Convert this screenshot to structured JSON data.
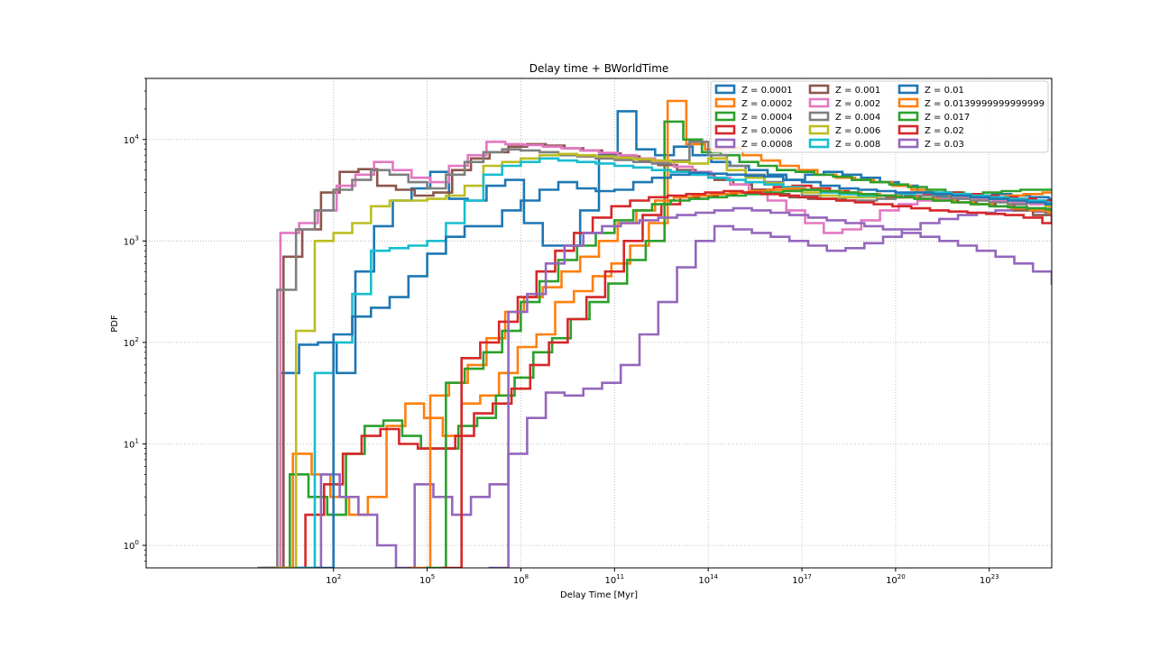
{
  "chart_data": {
    "type": "histogram-step",
    "title": "Delay time + BWorldTime",
    "xlabel": "Delay Time [Myr]",
    "ylabel": "PDF",
    "xscale": "log",
    "yscale": "log",
    "xlim": [
      0.0001,
      1e+25
    ],
    "ylim": [
      0.6,
      40000
    ],
    "grid": true,
    "legend_position": "top-right",
    "x_ticks": [
      {
        "value": 100.0,
        "base": "10",
        "exp": "2"
      },
      {
        "value": 100000.0,
        "base": "10",
        "exp": "5"
      },
      {
        "value": 100000000.0,
        "base": "10",
        "exp": "8"
      },
      {
        "value": 100000000000.0,
        "base": "10",
        "exp": "11"
      },
      {
        "value": 100000000000000.0,
        "base": "10",
        "exp": "14"
      },
      {
        "value": 1e+17,
        "base": "10",
        "exp": "17"
      },
      {
        "value": 1e+20,
        "base": "10",
        "exp": "20"
      },
      {
        "value": 1e+23,
        "base": "10",
        "exp": "23"
      }
    ],
    "y_ticks": [
      {
        "value": 1,
        "base": "10",
        "exp": "0"
      },
      {
        "value": 10,
        "base": "10",
        "exp": "1"
      },
      {
        "value": 100,
        "base": "10",
        "exp": "2"
      },
      {
        "value": 1000,
        "base": "10",
        "exp": "3"
      },
      {
        "value": 10000,
        "base": "10",
        "exp": "4"
      }
    ],
    "series": [
      {
        "name": "Z = 0.0001",
        "color": "#1f77b4",
        "start_exp": -0.3,
        "bin_width_exp": 0.6,
        "values": [
          0.6,
          50,
          95,
          100,
          50,
          500,
          1400,
          2500,
          3300,
          4800,
          2600,
          2500,
          3500,
          4000,
          1500,
          900,
          900,
          2000,
          7000,
          19000,
          8000,
          7000,
          8500,
          7000,
          6000,
          5500,
          5000,
          4500,
          4000,
          4500,
          4800,
          4500,
          4200,
          3800,
          3500,
          3000,
          2800,
          2700,
          2800,
          2900,
          2800,
          2700,
          2600,
          2500,
          2500,
          2400,
          2300,
          2200,
          2000,
          1800,
          1500,
          1000,
          600,
          300,
          150,
          60,
          25,
          8,
          1,
          0.6
        ]
      },
      {
        "name": "Z = 0.0002",
        "color": "#ff7f0e",
        "start_exp": 0.1,
        "bin_width_exp": 0.6,
        "values": [
          0.6,
          8,
          5,
          3,
          2,
          3,
          15,
          25,
          18,
          12,
          25,
          30,
          50,
          90,
          120,
          250,
          320,
          450,
          600,
          900,
          1500,
          24000,
          9000,
          8000,
          8200,
          7000,
          6200,
          5500,
          5000,
          4500,
          4200,
          4000,
          3800,
          3500,
          3200,
          2900,
          2800,
          2700,
          2700,
          2800,
          2900,
          3000,
          3000,
          2900,
          2800,
          2700,
          2500,
          2300,
          2100,
          1900,
          1600,
          1200,
          700,
          400,
          180,
          80,
          30,
          12,
          5,
          2,
          0.6
        ]
      },
      {
        "name": "Z = 0.0004",
        "color": "#2ca02c",
        "start_exp": 0.0,
        "bin_width_exp": 0.6,
        "values": [
          0.6,
          5,
          3,
          2,
          8,
          15,
          17,
          12,
          9,
          9,
          15,
          18,
          30,
          45,
          80,
          110,
          170,
          250,
          380,
          650,
          1000,
          15000,
          10000,
          7500,
          7000,
          6000,
          5500,
          5000,
          4800,
          4500,
          4300,
          4000,
          3800,
          3600,
          3400,
          3200,
          3000,
          2900,
          3000,
          3100,
          3200,
          3200,
          3200,
          3100,
          3000,
          2900,
          2800,
          2600,
          2400,
          2200,
          2000,
          1700,
          1300,
          850,
          500,
          250,
          100,
          40,
          12,
          4,
          0.6
        ]
      },
      {
        "name": "Z = 0.0006",
        "color": "#d62728",
        "start_exp": 0.5,
        "bin_width_exp": 0.6,
        "values": [
          0.6,
          2,
          4,
          8,
          12,
          14,
          10,
          9,
          9,
          12,
          20,
          25,
          35,
          60,
          100,
          170,
          280,
          500,
          1000,
          1800,
          2300,
          2700,
          2800,
          2900,
          3000,
          3200,
          3400,
          3500,
          3300,
          3100,
          2900,
          2800,
          2700,
          2800,
          2900,
          3000,
          2900,
          2800,
          2700,
          2600,
          2500,
          2400,
          2300,
          2200,
          2100,
          2000,
          1900,
          1800,
          1700,
          1600,
          1300,
          900,
          600,
          350,
          180,
          90,
          40,
          15,
          5,
          1,
          0.6
        ]
      },
      {
        "name": "Z = 0.0008",
        "color": "#9467bd",
        "start_exp": 1.0,
        "bin_width_exp": 0.6,
        "values": [
          0.6,
          5,
          3,
          2,
          1,
          0.6,
          4,
          3,
          2,
          3,
          4,
          8,
          18,
          32,
          30,
          35,
          40,
          60,
          120,
          250,
          550,
          1000,
          1400,
          1300,
          1200,
          1100,
          1000,
          900,
          800,
          850,
          950,
          1100,
          1300,
          1500,
          1650,
          1800,
          1900,
          2000,
          2100,
          1950,
          1850,
          1750,
          1650,
          1500,
          1300,
          1100,
          900,
          700,
          480,
          320,
          200,
          120,
          70,
          40,
          28,
          18,
          12,
          8,
          5,
          2,
          0.6
        ]
      },
      {
        "name": "Z = 0.001",
        "color": "#8c564b",
        "start_exp": -0.2,
        "bin_width_exp": 0.6,
        "values": [
          0.6,
          700,
          1300,
          3000,
          4800,
          5100,
          3500,
          3200,
          2800,
          3000,
          5000,
          6500,
          7500,
          8500,
          9000,
          8700,
          8200,
          7800,
          7300,
          6800,
          6200,
          5600,
          5000,
          4500,
          4000,
          3600,
          3200,
          2900,
          2700,
          2600,
          2600,
          2700,
          2800,
          2800,
          2700,
          2600,
          2500,
          2400,
          2300,
          2200,
          2000,
          1800,
          1500,
          1100,
          700,
          400,
          200,
          100,
          50,
          25,
          12,
          6,
          3,
          1,
          0.6
        ]
      },
      {
        "name": "Z = 0.002",
        "color": "#e377c2",
        "start_exp": -0.3,
        "bin_width_exp": 0.6,
        "values": [
          0.6,
          1200,
          1500,
          2000,
          3500,
          4500,
          6000,
          5000,
          4200,
          3800,
          5500,
          7000,
          9500,
          9000,
          8800,
          8500,
          8200,
          7800,
          7400,
          7000,
          6500,
          6000,
          5400,
          4800,
          4200,
          3600,
          3000,
          2500,
          2000,
          1500,
          1200,
          1300,
          1600,
          2000,
          2300,
          2500,
          2600,
          2700,
          2600,
          2500,
          2400,
          2300,
          2100,
          1900,
          1700,
          1400,
          1000,
          600,
          300,
          150,
          60,
          20,
          8,
          3,
          1,
          0.6
        ]
      },
      {
        "name": "Z = 0.004",
        "color": "#7f7f7f",
        "start_exp": -0.4,
        "bin_width_exp": 0.6,
        "values": [
          0.6,
          330,
          1300,
          2000,
          3200,
          4000,
          5000,
          4500,
          3800,
          3300,
          4500,
          6000,
          7500,
          8000,
          7800,
          7500,
          7000,
          6800,
          6500,
          6300,
          6000,
          5800,
          6200,
          9500,
          7000,
          5500,
          4500,
          3800,
          3200,
          2800,
          2600,
          2500,
          2500,
          2600,
          2700,
          2800,
          2700,
          2600,
          2500,
          2400,
          2300,
          2100,
          1900,
          1500,
          1000,
          550,
          250,
          100,
          40,
          15,
          5,
          2,
          0.6
        ]
      },
      {
        "name": "Z = 0.006",
        "color": "#bcbd22",
        "start_exp": 0.2,
        "bin_width_exp": 0.6,
        "values": [
          0.6,
          130,
          1000,
          1200,
          1500,
          2200,
          2500,
          2500,
          2600,
          2800,
          3500,
          5500,
          6000,
          6500,
          7000,
          7200,
          7000,
          6800,
          6600,
          6400,
          6200,
          6000,
          5800,
          6500,
          5000,
          4200,
          3700,
          3300,
          3000,
          2800,
          2700,
          2700,
          2800,
          2900,
          3000,
          2900,
          2800,
          2700,
          2600,
          2500,
          2400,
          2200,
          2000,
          1700,
          1300,
          900,
          500,
          250,
          100,
          40,
          15,
          6,
          2,
          0.6
        ]
      },
      {
        "name": "Z = 0.008",
        "color": "#17becf",
        "start_exp": 0.8,
        "bin_width_exp": 0.6,
        "values": [
          0.6,
          50,
          100,
          300,
          800,
          850,
          900,
          1000,
          1500,
          2500,
          4500,
          5500,
          6000,
          6500,
          6200,
          6000,
          5800,
          5500,
          5300,
          5000,
          4800,
          4500,
          4200,
          4000,
          3800,
          3600,
          3400,
          3200,
          3000,
          2900,
          2800,
          2800,
          2900,
          3000,
          3000,
          2900,
          2800,
          2700,
          2600,
          2500,
          2400,
          2200,
          2000,
          1800,
          1500,
          1200,
          800,
          500,
          250,
          120,
          50,
          20,
          8,
          3,
          0.6
        ]
      },
      {
        "name": "Z = 0.01",
        "color": "#1f77b4",
        "start_exp": 1.4,
        "bin_width_exp": 0.6,
        "values": [
          0.6,
          120,
          180,
          220,
          280,
          450,
          750,
          1100,
          1400,
          1400,
          2000,
          2500,
          3200,
          3800,
          3300,
          3100,
          3200,
          3800,
          4200,
          4500,
          4700,
          4600,
          4500,
          4400,
          4300,
          4000,
          3800,
          3500,
          3300,
          3200,
          3100,
          3000,
          3000,
          2900,
          2800,
          2700,
          2600,
          2500,
          2400,
          2300,
          2200,
          2000,
          1800,
          1600,
          1300,
          1000,
          700,
          450,
          250,
          120,
          50,
          20,
          7,
          0.6
        ]
      },
      {
        "name": "Z = 0.0139999999999999",
        "color": "#ff7f0e",
        "start_exp": 4.5,
        "bin_width_exp": 0.6,
        "values": [
          0.6,
          30,
          40,
          60,
          110,
          200,
          280,
          350,
          500,
          700,
          1000,
          1500,
          2000,
          2500,
          2700,
          2800,
          2900,
          3000,
          3100,
          3200,
          3300,
          3200,
          3100,
          3000,
          2900,
          2800,
          2700,
          2600,
          2500,
          2400,
          2300,
          2200,
          2100,
          2000,
          1900,
          1800,
          1600,
          1300,
          1000,
          700,
          450,
          300,
          180,
          100,
          50,
          20,
          8,
          3,
          0.6
        ]
      },
      {
        "name": "Z = 0.017",
        "color": "#2ca02c",
        "start_exp": 5.0,
        "bin_width_exp": 0.6,
        "values": [
          0.6,
          40,
          55,
          80,
          130,
          250,
          400,
          650,
          900,
          1200,
          1600,
          2000,
          2300,
          2500,
          2600,
          2700,
          2800,
          2900,
          3000,
          3100,
          3200,
          3100,
          3000,
          2900,
          2800,
          2700,
          2600,
          2500,
          2400,
          2300,
          2200,
          2150,
          2100,
          2050,
          2000,
          1900,
          1700,
          1400,
          1000,
          700,
          450,
          280,
          160,
          80,
          35,
          15,
          5,
          0.6
        ]
      },
      {
        "name": "Z = 0.02",
        "color": "#d62728",
        "start_exp": 5.5,
        "bin_width_exp": 0.6,
        "values": [
          0.6,
          70,
          100,
          160,
          280,
          500,
          800,
          1200,
          1700,
          2200,
          2500,
          2700,
          2800,
          2900,
          3000,
          3100,
          3000,
          2900,
          2800,
          2700,
          2600,
          2500,
          2400,
          2300,
          2200,
          2100,
          2000,
          1950,
          1900,
          1850,
          1800,
          1700,
          1500,
          1300,
          1100,
          900,
          600,
          350,
          180,
          90,
          40,
          15,
          4,
          0.6
        ]
      },
      {
        "name": "Z = 0.03",
        "color": "#9467bd",
        "start_exp": 7.0,
        "bin_width_exp": 0.6,
        "values": [
          0.6,
          200,
          300,
          600,
          900,
          1200,
          1400,
          1500,
          1600,
          1700,
          1800,
          1900,
          2000,
          2100,
          2000,
          1900,
          1800,
          1700,
          1600,
          1500,
          1400,
          1300,
          1200,
          1100,
          1000,
          900,
          800,
          700,
          600,
          500,
          380,
          250,
          160,
          90,
          50,
          28,
          20,
          12,
          8,
          0.6
        ]
      }
    ]
  }
}
